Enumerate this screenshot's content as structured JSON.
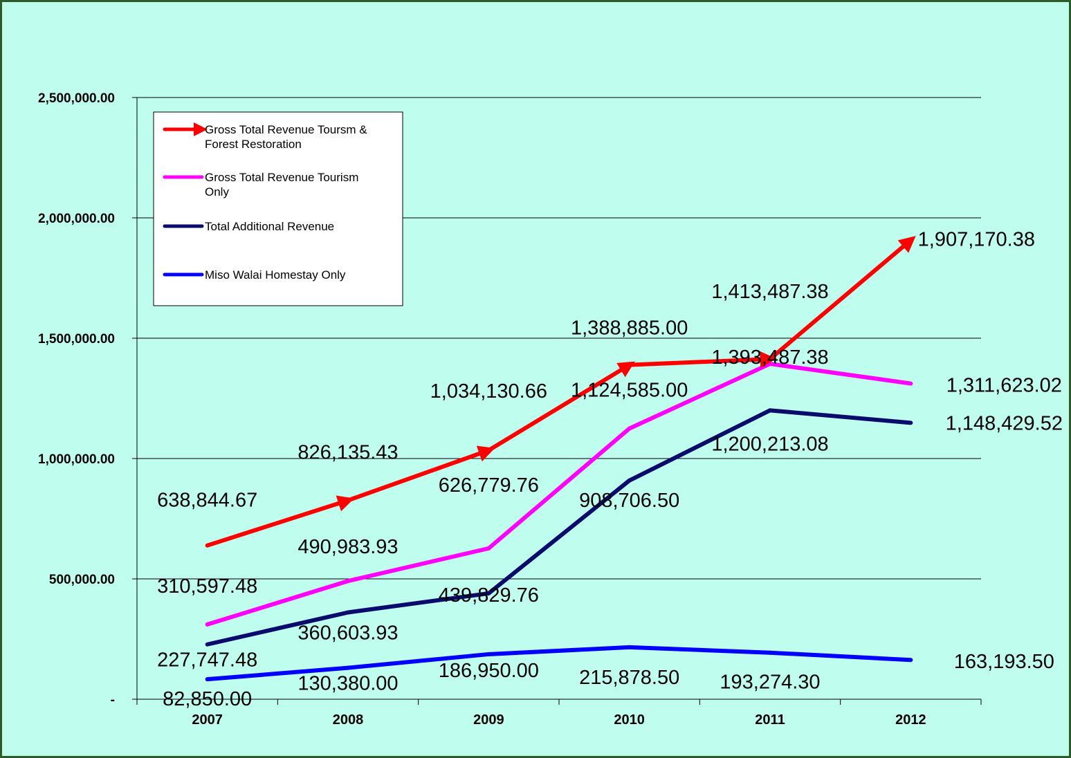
{
  "colors": {
    "page_background": "#bffdee",
    "frame": "#2f5a2a",
    "gridline": "#000000",
    "legend_background": "#ffffff"
  },
  "chart_data": {
    "type": "line",
    "title": "",
    "xlabel": "",
    "ylabel": "",
    "categories": [
      "2007",
      "2008",
      "2009",
      "2010",
      "2011",
      "2012"
    ],
    "ylim": [
      0,
      2500000
    ],
    "yticks": [
      {
        "value": 0,
        "label": "-"
      },
      {
        "value": 500000,
        "label": "500,000.00"
      },
      {
        "value": 1000000,
        "label": "1,000,000.00"
      },
      {
        "value": 1500000,
        "label": "1,500,000.00"
      },
      {
        "value": 2000000,
        "label": "2,000,000.00"
      },
      {
        "value": 2500000,
        "label": "2,500,000.00"
      }
    ],
    "grid": true,
    "legend_position": "top-left",
    "series": [
      {
        "name": "Gross Total Revenue  Toursm & Forest Restoration",
        "legend_lines": [
          "Gross Total Revenue  Toursm &",
          "Forest Restoration"
        ],
        "color": "#ff0000",
        "marker": "arrow",
        "values": [
          638844.67,
          826135.43,
          1034130.66,
          1388885.0,
          1413487.38,
          1907170.38
        ],
        "labels": [
          "638,844.67",
          "826,135.43",
          "1,034,130.66",
          "1,388,885.00",
          "1,413,487.38",
          "1,907,170.38"
        ]
      },
      {
        "name": "Gross Total Revenue Tourism Only",
        "legend_lines": [
          "Gross Total Revenue Tourism",
          "Only"
        ],
        "color": "#ff00ff",
        "marker": "none",
        "values": [
          310597.48,
          490983.93,
          626779.76,
          1124585.0,
          1393487.38,
          1311623.02
        ],
        "labels": [
          "310,597.48",
          "490,983.93",
          "626,779.76",
          "1,124,585.00",
          "1,393,487.38",
          "1,311,623.02"
        ]
      },
      {
        "name": "Total Additional Revenue",
        "legend_lines": [
          "Total Additional Revenue"
        ],
        "color": "#0b0b6e",
        "marker": "none",
        "values": [
          227747.48,
          360603.93,
          439829.76,
          908706.5,
          1200213.08,
          1148429.52
        ],
        "labels": [
          "227,747.48",
          "360,603.93",
          "439,829.76",
          "908,706.50",
          "1,200,213.08",
          "1,148,429.52"
        ]
      },
      {
        "name": "Miso Walai Homestay Only",
        "legend_lines": [
          "Miso Walai Homestay Only"
        ],
        "color": "#0000ff",
        "marker": "none",
        "values": [
          82850.0,
          130380.0,
          186950.0,
          215878.5,
          193274.3,
          163193.5
        ],
        "labels": [
          "82,850.00",
          "130,380.00",
          "186,950.00",
          "215,878.50",
          "193,274.30",
          "163,193.50"
        ]
      }
    ]
  }
}
